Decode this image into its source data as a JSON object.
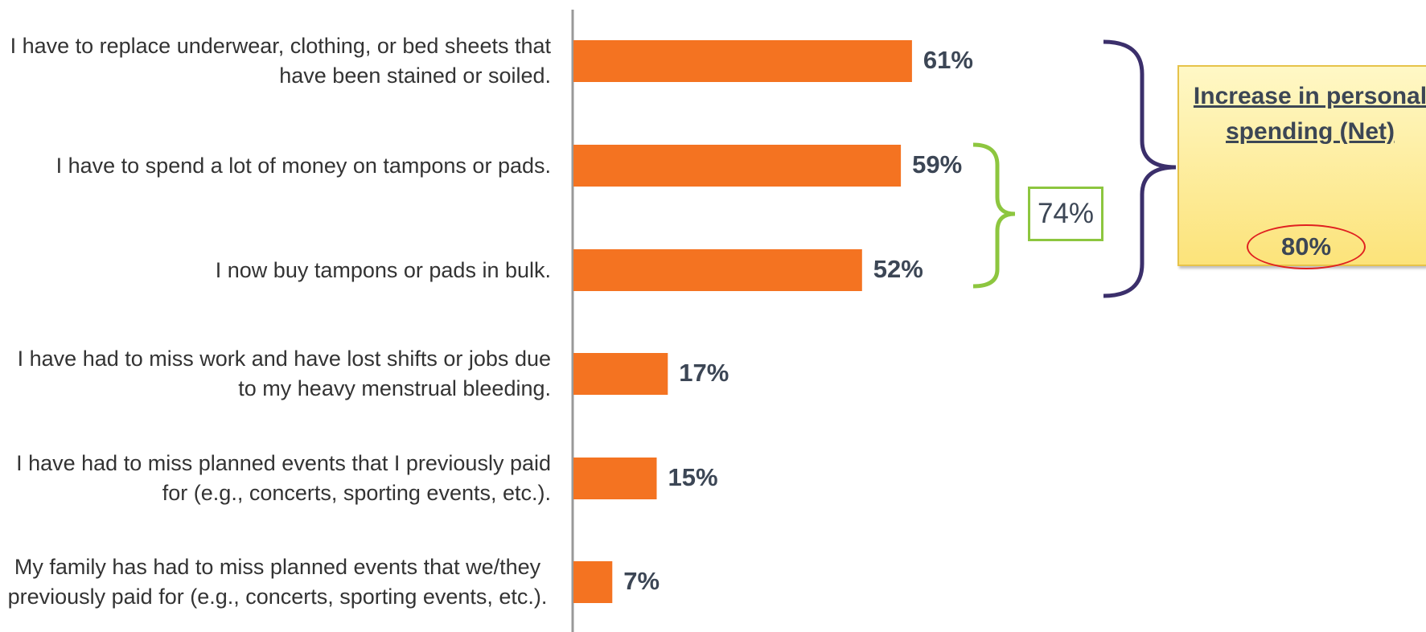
{
  "chart_data": {
    "type": "bar",
    "orientation": "horizontal",
    "categories": [
      "I have to replace underwear, clothing, or bed sheets that have been stained or soiled.",
      "I have to spend a lot of money on tampons or pads.",
      "I now buy tampons or pads in bulk.",
      "I have had to miss work and have lost shifts or jobs due to my heavy menstrual bleeding.",
      "I have had to miss planned events that I previously paid for (e.g., concerts, sporting events, etc.).",
      "My family has had to miss planned events that we/they previously paid for (e.g., concerts, sporting events, etc.)."
    ],
    "values": [
      61,
      59,
      52,
      17,
      15,
      7
    ],
    "value_labels": [
      "61%",
      "59%",
      "52%",
      "17%",
      "15%",
      "7%"
    ],
    "xlim": [
      0,
      100
    ],
    "grid": false,
    "annotations": {
      "group_net": {
        "label": "74%",
        "covers": [
          1,
          2
        ]
      },
      "overall_net": {
        "title": "Increase in personal spending (Net)",
        "value": "80%",
        "covers": [
          0,
          1,
          2
        ]
      }
    }
  },
  "colors": {
    "bar": "#f47321",
    "value_text": "#3c4655",
    "category_text": "#333333",
    "axis": "#999999",
    "group_brace": "#8dc63f",
    "net_brace": "#3b2f6b",
    "net_box_fill": "#fbe27a",
    "net_circle": "#e02020"
  }
}
